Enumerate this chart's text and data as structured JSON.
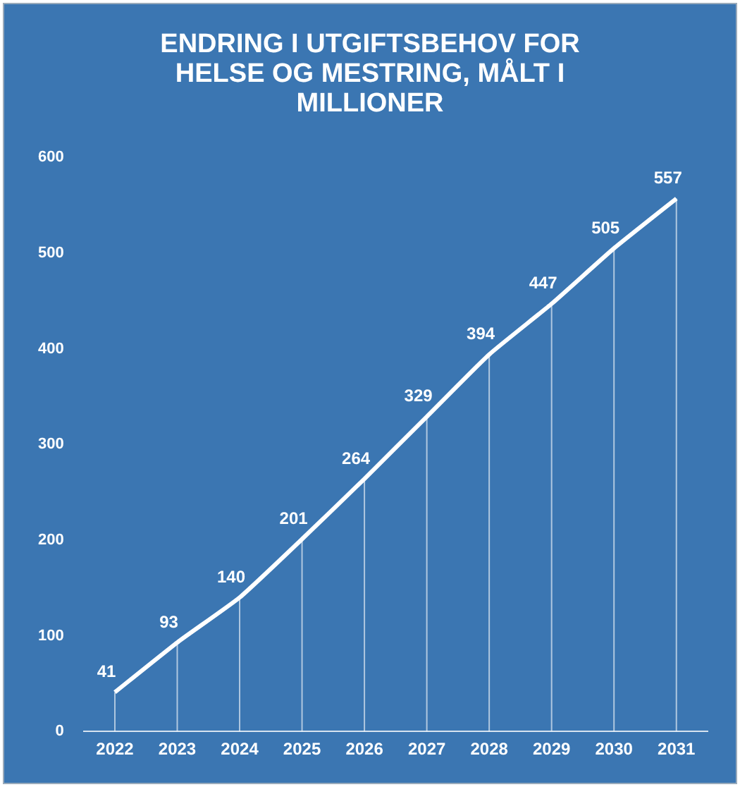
{
  "chart_data": {
    "type": "line",
    "title": "ENDRING I UTGIFTSBEHOV FOR HELSE OG MESTRING, MÅLT I MILLIONER",
    "categories": [
      "2022",
      "2023",
      "2024",
      "2025",
      "2026",
      "2027",
      "2028",
      "2029",
      "2030",
      "2031"
    ],
    "values": [
      41,
      93,
      140,
      201,
      264,
      329,
      394,
      447,
      505,
      557
    ],
    "color": "#ffffff",
    "ylim": [
      0,
      600
    ],
    "yticks": [
      0,
      100,
      200,
      300,
      400,
      500,
      600
    ],
    "grid": "x",
    "legend": false,
    "marker": "none",
    "line_style": "solid",
    "data_labels": true
  }
}
